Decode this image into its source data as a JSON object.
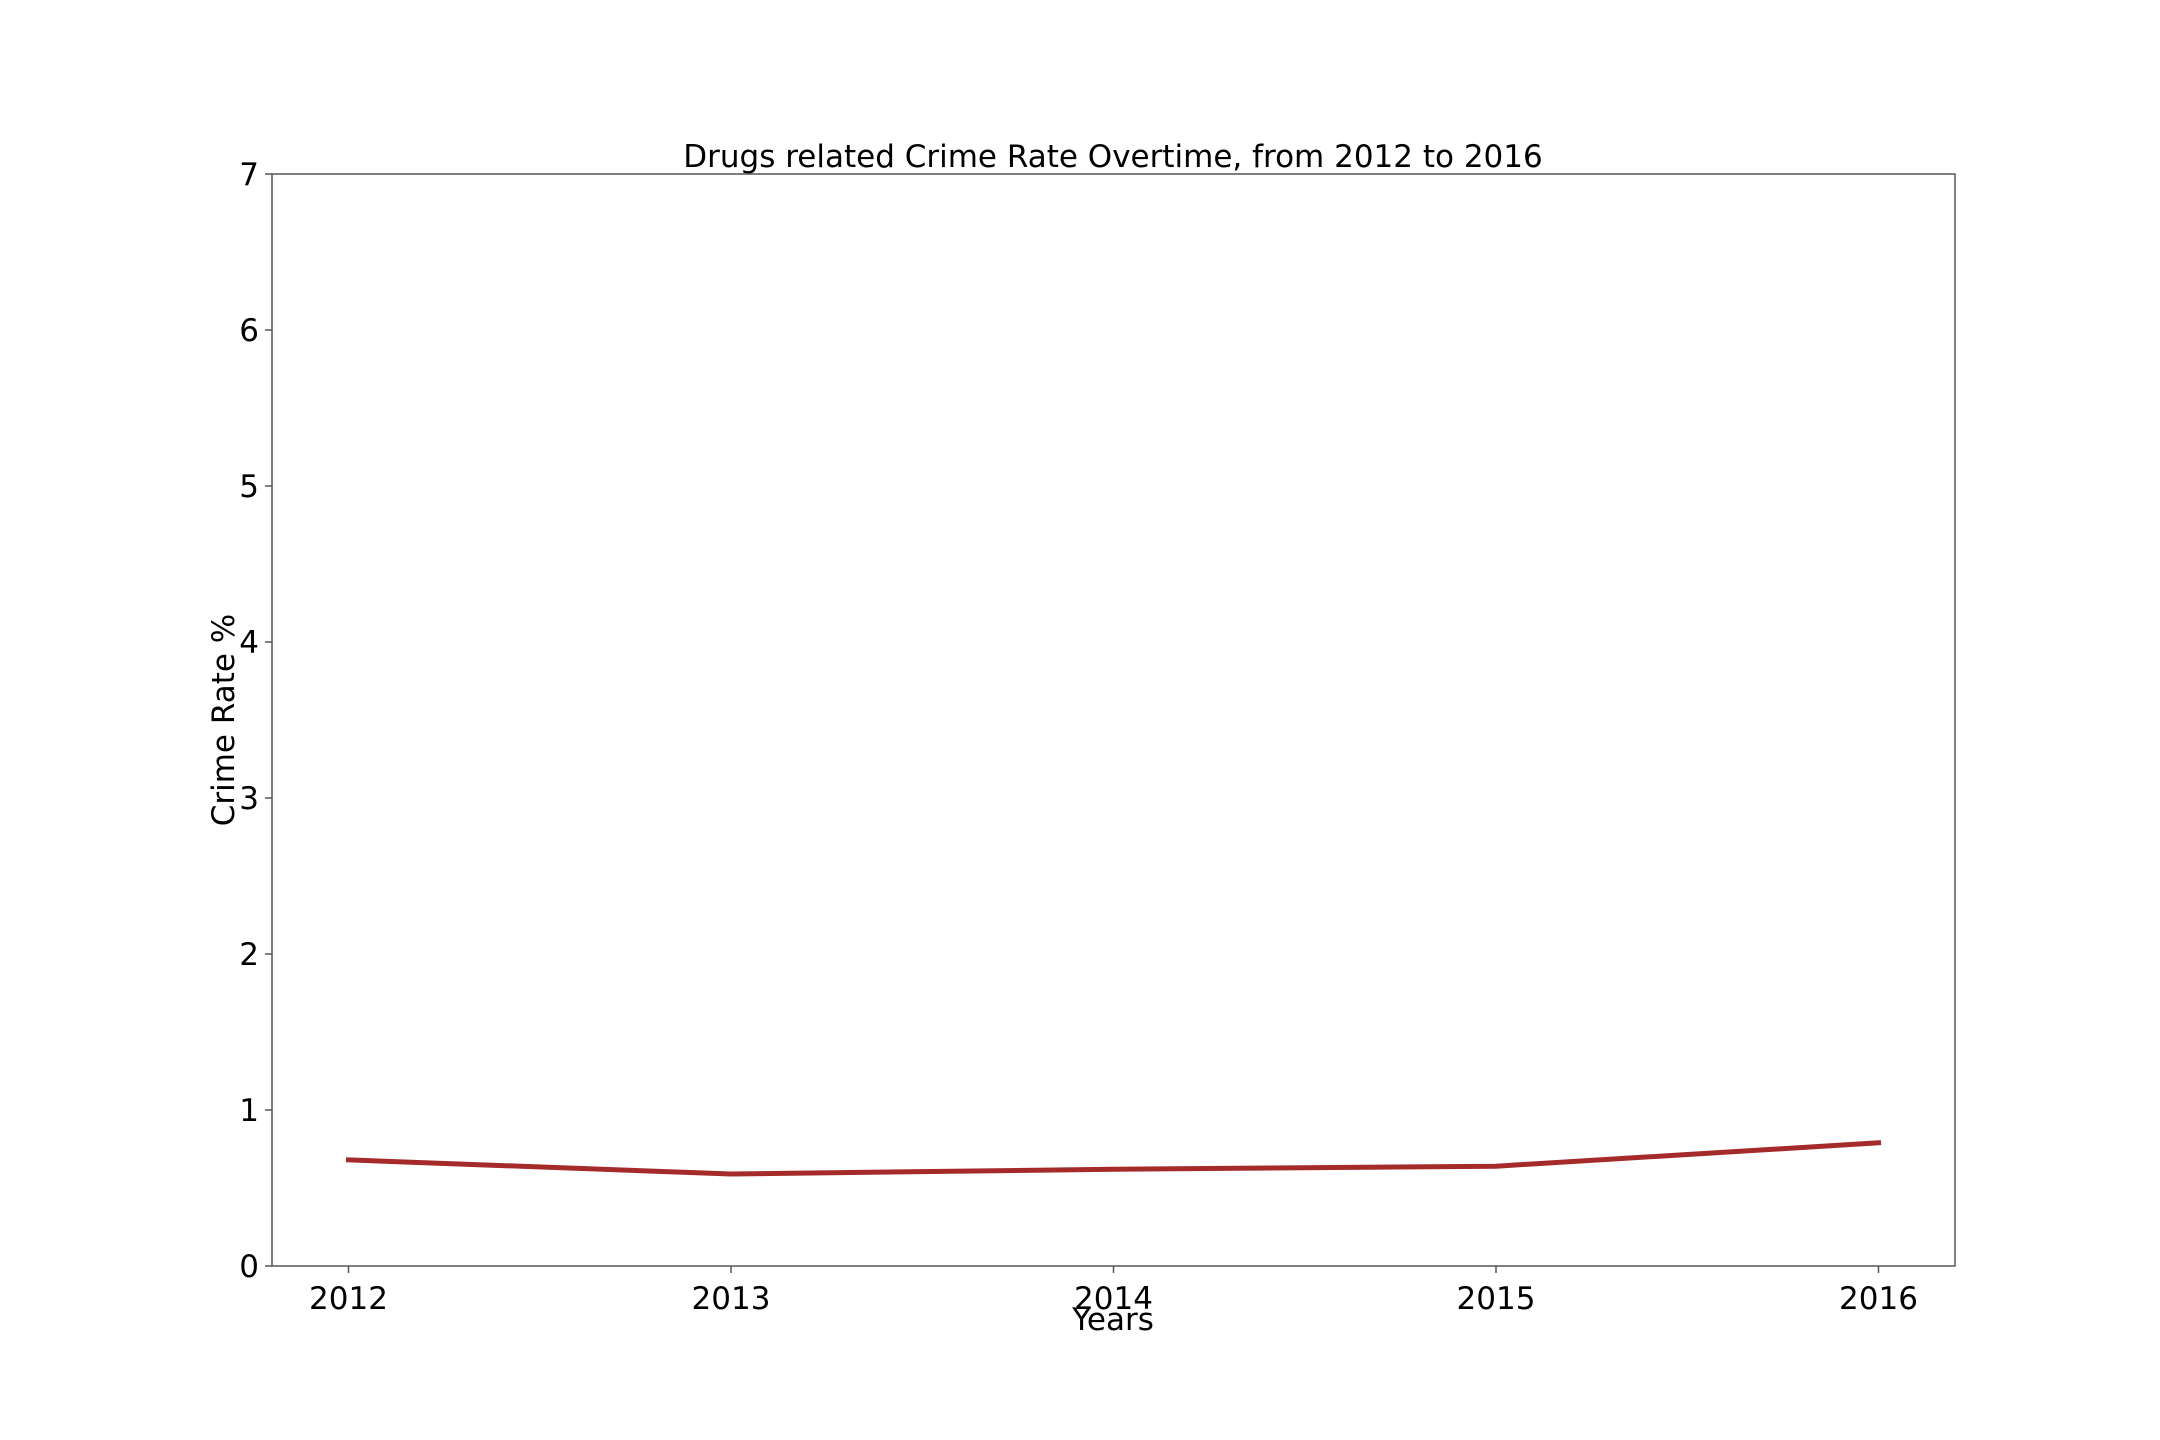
{
  "chart_data": {
    "type": "line",
    "title": "Drugs related Crime Rate Overtime, from 2012 to 2016",
    "xlabel": "Years",
    "ylabel": "Crime Rate %",
    "x": [
      2012,
      2013,
      2014,
      2015,
      2016
    ],
    "x_tick_labels": [
      "2012",
      "2013",
      "2014",
      "2015",
      "2016"
    ],
    "y_tick_labels": [
      "0",
      "1",
      "2",
      "3",
      "4",
      "5",
      "6",
      "7"
    ],
    "y_ticks": [
      0,
      1,
      2,
      3,
      4,
      5,
      6,
      7
    ],
    "xlim": [
      2011.8,
      2016.2
    ],
    "ylim": [
      0,
      7
    ],
    "grid": false,
    "series": [
      {
        "color": "#a52a2a",
        "values": [
          0.68,
          0.59,
          0.62,
          0.64,
          0.79
        ]
      }
    ]
  }
}
